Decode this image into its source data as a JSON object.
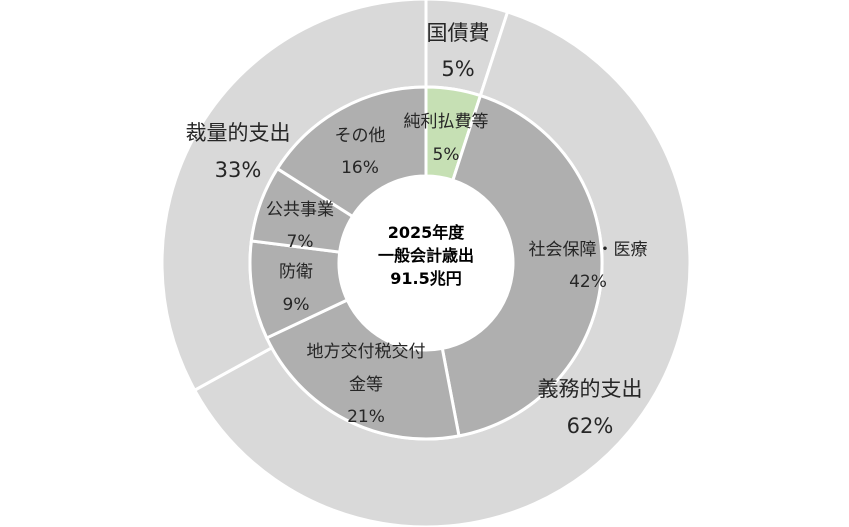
{
  "chart_data": {
    "type": "pie",
    "variant": "nested-donut",
    "center_label": [
      "2025年度",
      "一般会計歳出",
      "91.5兆円"
    ],
    "outer_ring": [
      {
        "name": "国債費",
        "value": 5,
        "label": "5%",
        "color": "#d9d9d9"
      },
      {
        "name": "義務的支出",
        "value": 62,
        "label": "62%",
        "color": "#d9d9d9"
      },
      {
        "name": "裁量的支出",
        "value": 33,
        "label": "33%",
        "color": "#d9d9d9"
      }
    ],
    "inner_ring": [
      {
        "name": "純利払費等",
        "value": 5,
        "label": "5%",
        "color": "#c6e0b4"
      },
      {
        "name": "社会保障・医療",
        "value": 42,
        "label": "42%",
        "color": "#afafaf"
      },
      {
        "name": "地方交付税交付金等",
        "value": 21,
        "label": "21%",
        "color": "#afafaf"
      },
      {
        "name": "防衛",
        "value": 9,
        "label": "9%",
        "color": "#afafaf"
      },
      {
        "name": "公共事業",
        "value": 7,
        "label": "7%",
        "color": "#afafaf"
      },
      {
        "name": "その他",
        "value": 16,
        "label": "16%",
        "color": "#afafaf"
      }
    ]
  }
}
